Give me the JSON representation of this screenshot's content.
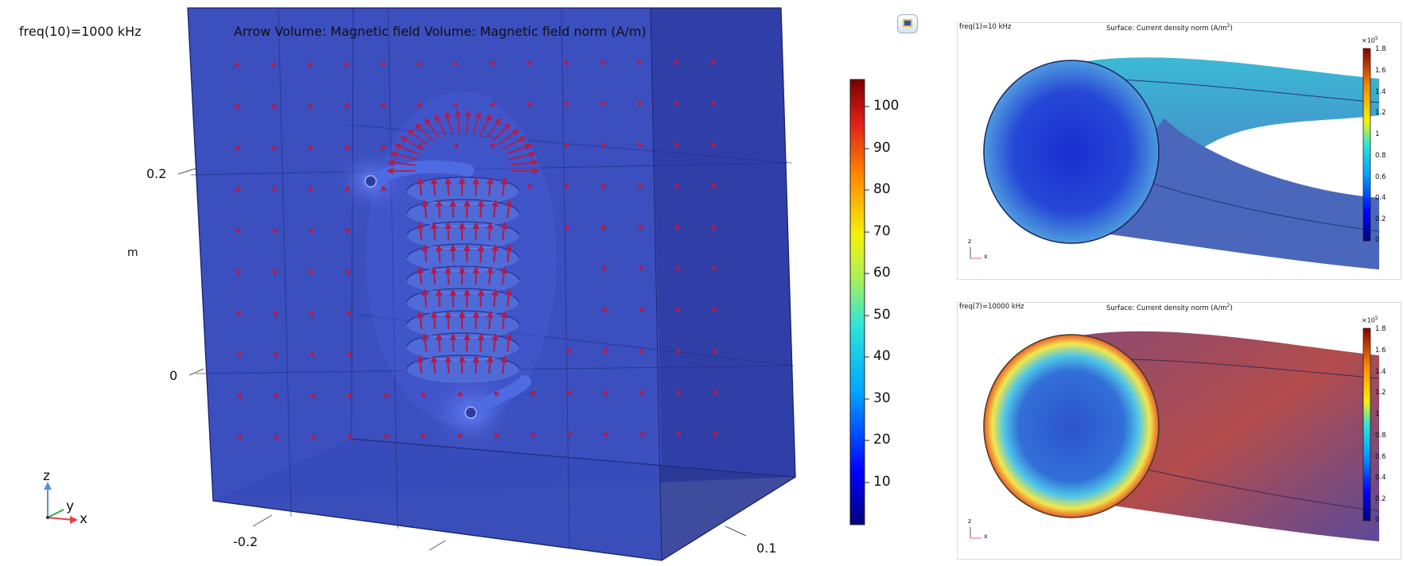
{
  "main_plot": {
    "parameter_label": "freq(10)=1000 kHz",
    "title": "Arrow Volume: Magnetic field  Volume: Magnetic field norm (A/m)",
    "axis_ticks": {
      "vertical": [
        "0.2",
        "0"
      ],
      "vertical_unit": "m",
      "horizontal_left": "-0.2",
      "horizontal_right": "0.1"
    },
    "colorbar_ticks": [
      "100",
      "90",
      "80",
      "70",
      "60",
      "50",
      "40",
      "30",
      "20",
      "10"
    ],
    "triad": {
      "z": "z",
      "y": "y",
      "x": "x"
    },
    "colors": {
      "domain_fill": "#3a4fb8",
      "coil": "#4b67d4",
      "arrows": "#b01d4d"
    }
  },
  "top_plot": {
    "parameter_label": "freq(1)=10 kHz",
    "title": "Surface: Current density norm (A/m",
    "title_superscript": "2",
    "title_suffix": ")",
    "colorbar_exponent": "×10",
    "colorbar_exponent_power": "5",
    "colorbar_ticks": [
      "1.8",
      "1.6",
      "1.4",
      "1.2",
      "1",
      "0.8",
      "0.6",
      "0.4",
      "0.2",
      "0"
    ],
    "triad": {
      "z": "z",
      "x": "x"
    }
  },
  "bottom_plot": {
    "parameter_label": "freq(7)=10000 kHz",
    "title": "Surface: Current density norm (A/m",
    "title_superscript": "2",
    "title_suffix": ")",
    "colorbar_exponent": "×10",
    "colorbar_exponent_power": "5",
    "colorbar_ticks": [
      "1.8",
      "1.6",
      "1.4",
      "1.2",
      "1",
      "0.8",
      "0.6",
      "0.4",
      "0.2",
      "0"
    ],
    "triad": {
      "z": "z",
      "x": "x"
    }
  }
}
